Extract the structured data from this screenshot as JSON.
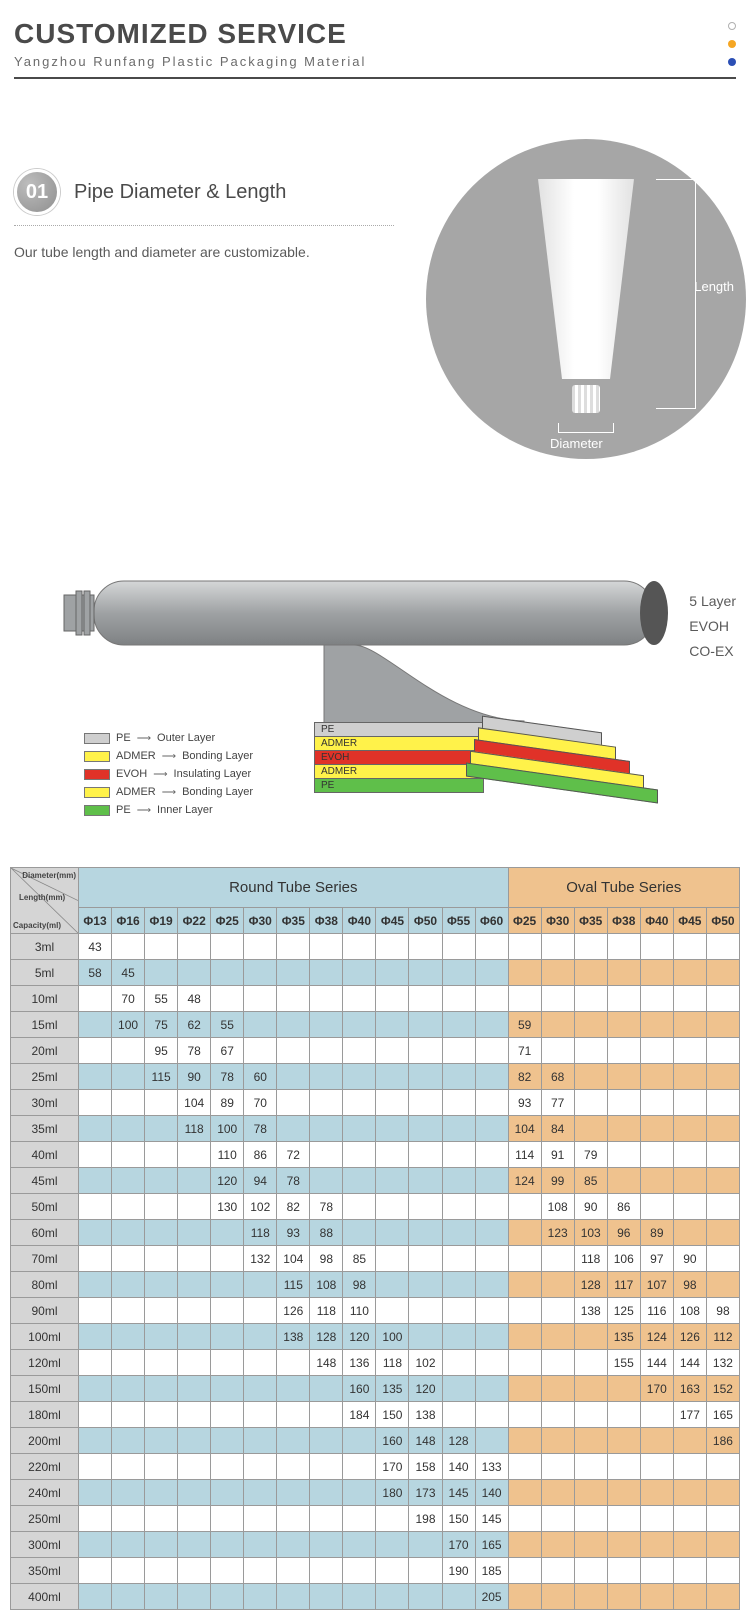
{
  "header": {
    "title": "CUSTOMIZED SERVICE",
    "subtitle": "Yangzhou Runfang Plastic Packaging Material",
    "dot_colors": [
      "#ffffff",
      "#f5a623",
      "#2b4fb5"
    ]
  },
  "section1": {
    "badge": "01",
    "title": "Pipe Diameter & Length",
    "desc": "Our tube length and diameter are customizable.",
    "length_label": "Length",
    "diameter_label": "Diameter"
  },
  "layers": {
    "side_labels": [
      "5 Layer",
      "EVOH",
      "CO-EX"
    ],
    "tube_color": "#9fa2a4",
    "layer_defs": [
      {
        "code": "PE",
        "name": "Outer Layer",
        "color": "#cfcfcf"
      },
      {
        "code": "ADMER",
        "name": "Bonding Layer",
        "color": "#fff24a"
      },
      {
        "code": "EVOH",
        "name": "Insulating Layer",
        "color": "#e03228"
      },
      {
        "code": "ADMER",
        "name": "Bonding Layer",
        "color": "#fff24a"
      },
      {
        "code": "PE",
        "name": "Inner Layer",
        "color": "#5fbf4a"
      }
    ]
  },
  "table": {
    "corner_labels": [
      "Diameter(mm)",
      "Length(mm)",
      "Capacity(ml)"
    ],
    "round_title": "Round Tube Series",
    "oval_title": "Oval Tube Series",
    "round_cols": [
      "Φ13",
      "Φ16",
      "Φ19",
      "Φ22",
      "Φ25",
      "Φ30",
      "Φ35",
      "Φ38",
      "Φ40",
      "Φ45",
      "Φ50",
      "Φ55",
      "Φ60"
    ],
    "oval_cols": [
      "Φ25",
      "Φ30",
      "Φ35",
      "Φ38",
      "Φ40",
      "Φ45",
      "Φ50"
    ],
    "colors": {
      "round_header": "#b7d6e0",
      "oval_header": "#efc28e",
      "capacity_bg": "#d5d5d5",
      "border": "#9a9a9a"
    },
    "rows": [
      {
        "cap": "3ml",
        "stripe": false,
        "round": [
          "43",
          "",
          "",
          "",
          "",
          "",
          "",
          "",
          "",
          "",
          "",
          "",
          ""
        ],
        "oval": [
          "",
          "",
          "",
          "",
          "",
          "",
          ""
        ]
      },
      {
        "cap": "5ml",
        "stripe": true,
        "round": [
          "58",
          "45",
          "",
          "",
          "",
          "",
          "",
          "",
          "",
          "",
          "",
          "",
          ""
        ],
        "oval": [
          "",
          "",
          "",
          "",
          "",
          "",
          ""
        ]
      },
      {
        "cap": "10ml",
        "stripe": false,
        "round": [
          "",
          "70",
          "55",
          "48",
          "",
          "",
          "",
          "",
          "",
          "",
          "",
          "",
          ""
        ],
        "oval": [
          "",
          "",
          "",
          "",
          "",
          "",
          ""
        ]
      },
      {
        "cap": "15ml",
        "stripe": true,
        "round": [
          "",
          "100",
          "75",
          "62",
          "55",
          "",
          "",
          "",
          "",
          "",
          "",
          "",
          ""
        ],
        "oval": [
          "59",
          "",
          "",
          "",
          "",
          "",
          ""
        ]
      },
      {
        "cap": "20ml",
        "stripe": false,
        "round": [
          "",
          "",
          "95",
          "78",
          "67",
          "",
          "",
          "",
          "",
          "",
          "",
          "",
          ""
        ],
        "oval": [
          "71",
          "",
          "",
          "",
          "",
          "",
          ""
        ]
      },
      {
        "cap": "25ml",
        "stripe": true,
        "round": [
          "",
          "",
          "115",
          "90",
          "78",
          "60",
          "",
          "",
          "",
          "",
          "",
          "",
          ""
        ],
        "oval": [
          "82",
          "68",
          "",
          "",
          "",
          "",
          ""
        ]
      },
      {
        "cap": "30ml",
        "stripe": false,
        "round": [
          "",
          "",
          "",
          "104",
          "89",
          "70",
          "",
          "",
          "",
          "",
          "",
          "",
          ""
        ],
        "oval": [
          "93",
          "77",
          "",
          "",
          "",
          "",
          ""
        ]
      },
      {
        "cap": "35ml",
        "stripe": true,
        "round": [
          "",
          "",
          "",
          "118",
          "100",
          "78",
          "",
          "",
          "",
          "",
          "",
          "",
          ""
        ],
        "oval": [
          "104",
          "84",
          "",
          "",
          "",
          "",
          ""
        ]
      },
      {
        "cap": "40ml",
        "stripe": false,
        "round": [
          "",
          "",
          "",
          "",
          "110",
          "86",
          "72",
          "",
          "",
          "",
          "",
          "",
          ""
        ],
        "oval": [
          "114",
          "91",
          "79",
          "",
          "",
          "",
          ""
        ]
      },
      {
        "cap": "45ml",
        "stripe": true,
        "round": [
          "",
          "",
          "",
          "",
          "120",
          "94",
          "78",
          "",
          "",
          "",
          "",
          "",
          ""
        ],
        "oval": [
          "124",
          "99",
          "85",
          "",
          "",
          "",
          ""
        ]
      },
      {
        "cap": "50ml",
        "stripe": false,
        "round": [
          "",
          "",
          "",
          "",
          "130",
          "102",
          "82",
          "78",
          "",
          "",
          "",
          "",
          ""
        ],
        "oval": [
          "",
          "108",
          "90",
          "86",
          "",
          "",
          ""
        ]
      },
      {
        "cap": "60ml",
        "stripe": true,
        "round": [
          "",
          "",
          "",
          "",
          "",
          "118",
          "93",
          "88",
          "",
          "",
          "",
          "",
          ""
        ],
        "oval": [
          "",
          "123",
          "103",
          "96",
          "89",
          "",
          ""
        ]
      },
      {
        "cap": "70ml",
        "stripe": false,
        "round": [
          "",
          "",
          "",
          "",
          "",
          "132",
          "104",
          "98",
          "85",
          "",
          "",
          "",
          ""
        ],
        "oval": [
          "",
          "",
          "118",
          "106",
          "97",
          "90",
          ""
        ]
      },
      {
        "cap": "80ml",
        "stripe": true,
        "round": [
          "",
          "",
          "",
          "",
          "",
          "",
          "115",
          "108",
          "98",
          "",
          "",
          "",
          ""
        ],
        "oval": [
          "",
          "",
          "128",
          "117",
          "107",
          "98",
          ""
        ]
      },
      {
        "cap": "90ml",
        "stripe": false,
        "round": [
          "",
          "",
          "",
          "",
          "",
          "",
          "126",
          "118",
          "110",
          "",
          "",
          "",
          ""
        ],
        "oval": [
          "",
          "",
          "138",
          "125",
          "116",
          "108",
          "98"
        ]
      },
      {
        "cap": "100ml",
        "stripe": true,
        "round": [
          "",
          "",
          "",
          "",
          "",
          "",
          "138",
          "128",
          "120",
          "100",
          "",
          "",
          ""
        ],
        "oval": [
          "",
          "",
          "",
          "135",
          "124",
          "126",
          "112"
        ]
      },
      {
        "cap": "120ml",
        "stripe": false,
        "round": [
          "",
          "",
          "",
          "",
          "",
          "",
          "",
          "148",
          "136",
          "118",
          "102",
          "",
          ""
        ],
        "oval": [
          "",
          "",
          "",
          "155",
          "144",
          "144",
          "132"
        ]
      },
      {
        "cap": "150ml",
        "stripe": true,
        "round": [
          "",
          "",
          "",
          "",
          "",
          "",
          "",
          "",
          "160",
          "135",
          "120",
          "",
          ""
        ],
        "oval": [
          "",
          "",
          "",
          "",
          "170",
          "163",
          "152"
        ]
      },
      {
        "cap": "180ml",
        "stripe": false,
        "round": [
          "",
          "",
          "",
          "",
          "",
          "",
          "",
          "",
          "184",
          "150",
          "138",
          "",
          ""
        ],
        "oval": [
          "",
          "",
          "",
          "",
          "",
          "177",
          "165"
        ]
      },
      {
        "cap": "200ml",
        "stripe": true,
        "round": [
          "",
          "",
          "",
          "",
          "",
          "",
          "",
          "",
          "",
          "160",
          "148",
          "128",
          ""
        ],
        "oval": [
          "",
          "",
          "",
          "",
          "",
          "",
          "186"
        ]
      },
      {
        "cap": "220ml",
        "stripe": false,
        "round": [
          "",
          "",
          "",
          "",
          "",
          "",
          "",
          "",
          "",
          "170",
          "158",
          "140",
          "133"
        ],
        "oval": [
          "",
          "",
          "",
          "",
          "",
          "",
          ""
        ]
      },
      {
        "cap": "240ml",
        "stripe": true,
        "round": [
          "",
          "",
          "",
          "",
          "",
          "",
          "",
          "",
          "",
          "180",
          "173",
          "145",
          "140"
        ],
        "oval": [
          "",
          "",
          "",
          "",
          "",
          "",
          ""
        ]
      },
      {
        "cap": "250ml",
        "stripe": false,
        "round": [
          "",
          "",
          "",
          "",
          "",
          "",
          "",
          "",
          "",
          "",
          "198",
          "150",
          "145"
        ],
        "oval": [
          "",
          "",
          "",
          "",
          "",
          "",
          ""
        ]
      },
      {
        "cap": "300ml",
        "stripe": true,
        "round": [
          "",
          "",
          "",
          "",
          "",
          "",
          "",
          "",
          "",
          "",
          "",
          "170",
          "165"
        ],
        "oval": [
          "",
          "",
          "",
          "",
          "",
          "",
          ""
        ]
      },
      {
        "cap": "350ml",
        "stripe": false,
        "round": [
          "",
          "",
          "",
          "",
          "",
          "",
          "",
          "",
          "",
          "",
          "",
          "190",
          "185"
        ],
        "oval": [
          "",
          "",
          "",
          "",
          "",
          "",
          ""
        ]
      },
      {
        "cap": "400ml",
        "stripe": true,
        "round": [
          "",
          "",
          "",
          "",
          "",
          "",
          "",
          "",
          "",
          "",
          "",
          "",
          "205"
        ],
        "oval": [
          "",
          "",
          "",
          "",
          "",
          "",
          ""
        ]
      }
    ]
  }
}
